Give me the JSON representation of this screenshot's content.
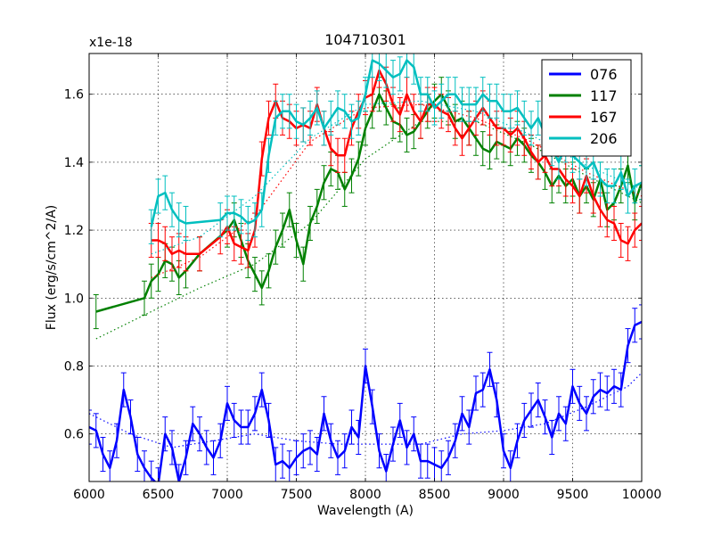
{
  "chart_data": {
    "type": "line",
    "title": "104710301",
    "xlabel": "Wavelength (A)",
    "ylabel": "Flux (erg/s/cm^2/A)",
    "y_multiplier": "x1e-18",
    "xlim": [
      6000,
      10000
    ],
    "ylim": [
      0.46,
      1.72
    ],
    "xticks": [
      6000,
      6500,
      7000,
      7500,
      8000,
      8500,
      9000,
      9500,
      10000
    ],
    "yticks": [
      0.6,
      0.8,
      1.0,
      1.2,
      1.4,
      1.6
    ],
    "ytick_labels": [
      "0.6",
      "0.8",
      "1.0",
      "1.2",
      "1.4",
      "1.6"
    ],
    "grid": true,
    "legend_position": "top-right",
    "series": [
      {
        "name": "076",
        "color": "#0000ff",
        "x": [
          6000,
          6050,
          6100,
          6150,
          6200,
          6250,
          6300,
          6350,
          6400,
          6450,
          6500,
          6550,
          6600,
          6650,
          6700,
          6750,
          6800,
          6850,
          6900,
          6950,
          7000,
          7050,
          7100,
          7150,
          7200,
          7250,
          7300,
          7350,
          7400,
          7450,
          7500,
          7550,
          7600,
          7650,
          7700,
          7750,
          7800,
          7850,
          7900,
          7950,
          8000,
          8050,
          8100,
          8150,
          8200,
          8250,
          8300,
          8350,
          8400,
          8450,
          8500,
          8550,
          8600,
          8650,
          8700,
          8750,
          8800,
          8850,
          8900,
          8950,
          9000,
          9050,
          9100,
          9150,
          9200,
          9250,
          9300,
          9350,
          9400,
          9450,
          9500,
          9550,
          9600,
          9650,
          9700,
          9750,
          9800,
          9850,
          9900,
          9950,
          10000
        ],
        "y": [
          0.62,
          0.61,
          0.54,
          0.5,
          0.58,
          0.73,
          0.65,
          0.54,
          0.5,
          0.47,
          0.45,
          0.6,
          0.56,
          0.46,
          0.53,
          0.63,
          0.6,
          0.56,
          0.53,
          0.58,
          0.69,
          0.64,
          0.62,
          0.62,
          0.66,
          0.73,
          0.64,
          0.51,
          0.52,
          0.5,
          0.53,
          0.55,
          0.56,
          0.54,
          0.66,
          0.58,
          0.53,
          0.55,
          0.62,
          0.59,
          0.8,
          0.68,
          0.55,
          0.49,
          0.57,
          0.64,
          0.56,
          0.6,
          0.52,
          0.52,
          0.51,
          0.5,
          0.53,
          0.58,
          0.66,
          0.62,
          0.72,
          0.73,
          0.79,
          0.7,
          0.55,
          0.5,
          0.58,
          0.64,
          0.67,
          0.7,
          0.65,
          0.59,
          0.66,
          0.63,
          0.74,
          0.69,
          0.66,
          0.71,
          0.73,
          0.72,
          0.74,
          0.73,
          0.86,
          0.92,
          0.93
        ],
        "yerr": 0.05,
        "model_x": [
          6000,
          6300,
          6600,
          6900,
          7200,
          7500,
          7800,
          8100,
          8400,
          8700,
          9000,
          9300,
          9600,
          9900,
          10000
        ],
        "model_y": [
          0.66,
          0.6,
          0.56,
          0.58,
          0.6,
          0.58,
          0.57,
          0.57,
          0.57,
          0.6,
          0.61,
          0.63,
          0.68,
          0.74,
          0.78
        ]
      },
      {
        "name": "117",
        "color": "#008000",
        "x": [
          6050,
          6400,
          6450,
          6500,
          6550,
          6600,
          6650,
          6700,
          6800,
          7000,
          7050,
          7100,
          7150,
          7200,
          7250,
          7300,
          7350,
          7400,
          7450,
          7500,
          7550,
          7600,
          7650,
          7700,
          7750,
          7800,
          7850,
          7900,
          7950,
          8000,
          8050,
          8100,
          8150,
          8200,
          8250,
          8300,
          8350,
          8400,
          8450,
          8500,
          8550,
          8600,
          8650,
          8700,
          8750,
          8800,
          8850,
          8900,
          8950,
          9000,
          9050,
          9100,
          9150,
          9200,
          9250,
          9300,
          9350,
          9400,
          9450,
          9500,
          9550,
          9600,
          9650,
          9700,
          9750,
          9800,
          9850,
          9900,
          9950,
          10000
        ],
        "y": [
          0.96,
          1.0,
          1.05,
          1.07,
          1.11,
          1.1,
          1.06,
          1.08,
          1.13,
          1.2,
          1.23,
          1.17,
          1.11,
          1.07,
          1.03,
          1.08,
          1.15,
          1.2,
          1.26,
          1.17,
          1.1,
          1.22,
          1.27,
          1.34,
          1.38,
          1.37,
          1.32,
          1.36,
          1.41,
          1.5,
          1.55,
          1.6,
          1.56,
          1.52,
          1.51,
          1.48,
          1.49,
          1.52,
          1.55,
          1.58,
          1.6,
          1.56,
          1.52,
          1.53,
          1.5,
          1.47,
          1.44,
          1.43,
          1.46,
          1.45,
          1.44,
          1.47,
          1.45,
          1.42,
          1.4,
          1.37,
          1.33,
          1.36,
          1.33,
          1.35,
          1.3,
          1.33,
          1.29,
          1.35,
          1.26,
          1.28,
          1.33,
          1.39,
          1.28,
          1.34
        ],
        "yerr": 0.05,
        "model_x": [
          6050,
          6400,
          6800,
          7200,
          7600,
          8000,
          8400,
          8800,
          9200,
          9600,
          10000
        ],
        "model_y": [
          0.88,
          0.95,
          1.03,
          1.1,
          1.22,
          1.41,
          1.52,
          1.52,
          1.45,
          1.36,
          1.28
        ]
      },
      {
        "name": "167",
        "color": "#ff0000",
        "x": [
          6450,
          6500,
          6550,
          6600,
          6650,
          6700,
          6800,
          6950,
          7000,
          7050,
          7100,
          7150,
          7200,
          7250,
          7300,
          7350,
          7400,
          7450,
          7500,
          7550,
          7600,
          7650,
          7700,
          7750,
          7800,
          7850,
          7900,
          7950,
          8000,
          8050,
          8100,
          8150,
          8200,
          8250,
          8300,
          8350,
          8400,
          8450,
          8500,
          8550,
          8600,
          8650,
          8700,
          8750,
          8800,
          8850,
          8900,
          8950,
          9000,
          9050,
          9100,
          9150,
          9200,
          9250,
          9300,
          9350,
          9400,
          9450,
          9500,
          9550,
          9600,
          9650,
          9700,
          9750,
          9800,
          9850,
          9900,
          9950,
          10000
        ],
        "y": [
          1.17,
          1.17,
          1.16,
          1.13,
          1.14,
          1.13,
          1.13,
          1.18,
          1.21,
          1.16,
          1.15,
          1.14,
          1.2,
          1.41,
          1.53,
          1.58,
          1.53,
          1.52,
          1.5,
          1.51,
          1.5,
          1.57,
          1.5,
          1.44,
          1.42,
          1.42,
          1.5,
          1.55,
          1.59,
          1.6,
          1.67,
          1.63,
          1.57,
          1.54,
          1.6,
          1.55,
          1.52,
          1.57,
          1.57,
          1.55,
          1.54,
          1.5,
          1.47,
          1.5,
          1.53,
          1.56,
          1.53,
          1.5,
          1.5,
          1.48,
          1.5,
          1.47,
          1.43,
          1.4,
          1.42,
          1.38,
          1.38,
          1.35,
          1.33,
          1.3,
          1.36,
          1.3,
          1.26,
          1.23,
          1.22,
          1.17,
          1.16,
          1.2,
          1.22
        ],
        "yerr": 0.05,
        "model_x": [
          6450,
          6800,
          7200,
          7600,
          8000,
          8400,
          8800,
          9200,
          9600,
          10000
        ],
        "model_y": [
          1.06,
          1.12,
          1.24,
          1.46,
          1.56,
          1.57,
          1.53,
          1.46,
          1.37,
          1.3
        ]
      },
      {
        "name": "206",
        "color": "#00bfbf",
        "x": [
          6450,
          6500,
          6550,
          6600,
          6650,
          6700,
          6950,
          7000,
          7050,
          7100,
          7150,
          7200,
          7250,
          7300,
          7350,
          7400,
          7450,
          7500,
          7550,
          7600,
          7650,
          7700,
          7750,
          7800,
          7850,
          7900,
          7950,
          8000,
          8050,
          8100,
          8150,
          8200,
          8250,
          8300,
          8350,
          8400,
          8450,
          8500,
          8550,
          8600,
          8650,
          8700,
          8750,
          8800,
          8850,
          8900,
          8950,
          9000,
          9050,
          9100,
          9150,
          9200,
          9250,
          9300,
          9350,
          9400,
          9450,
          9500,
          9550,
          9600,
          9650,
          9700,
          9750,
          9800,
          9850,
          9900,
          9950,
          10000
        ],
        "y": [
          1.21,
          1.3,
          1.31,
          1.26,
          1.23,
          1.22,
          1.23,
          1.25,
          1.25,
          1.24,
          1.22,
          1.23,
          1.26,
          1.42,
          1.53,
          1.55,
          1.55,
          1.52,
          1.51,
          1.53,
          1.56,
          1.5,
          1.53,
          1.56,
          1.55,
          1.52,
          1.53,
          1.6,
          1.7,
          1.69,
          1.67,
          1.65,
          1.66,
          1.7,
          1.68,
          1.6,
          1.6,
          1.56,
          1.58,
          1.6,
          1.6,
          1.57,
          1.57,
          1.57,
          1.6,
          1.58,
          1.58,
          1.55,
          1.55,
          1.56,
          1.53,
          1.5,
          1.53,
          1.48,
          1.44,
          1.4,
          1.45,
          1.42,
          1.4,
          1.38,
          1.4,
          1.35,
          1.33,
          1.33,
          1.37,
          1.3,
          1.33,
          1.34
        ],
        "yerr": 0.05,
        "model_x": [
          6450,
          6800,
          7200,
          7600,
          8000,
          8400,
          8800,
          9200,
          9600,
          10000
        ],
        "model_y": [
          1.13,
          1.18,
          1.3,
          1.47,
          1.57,
          1.58,
          1.55,
          1.48,
          1.39,
          1.32
        ]
      }
    ]
  }
}
